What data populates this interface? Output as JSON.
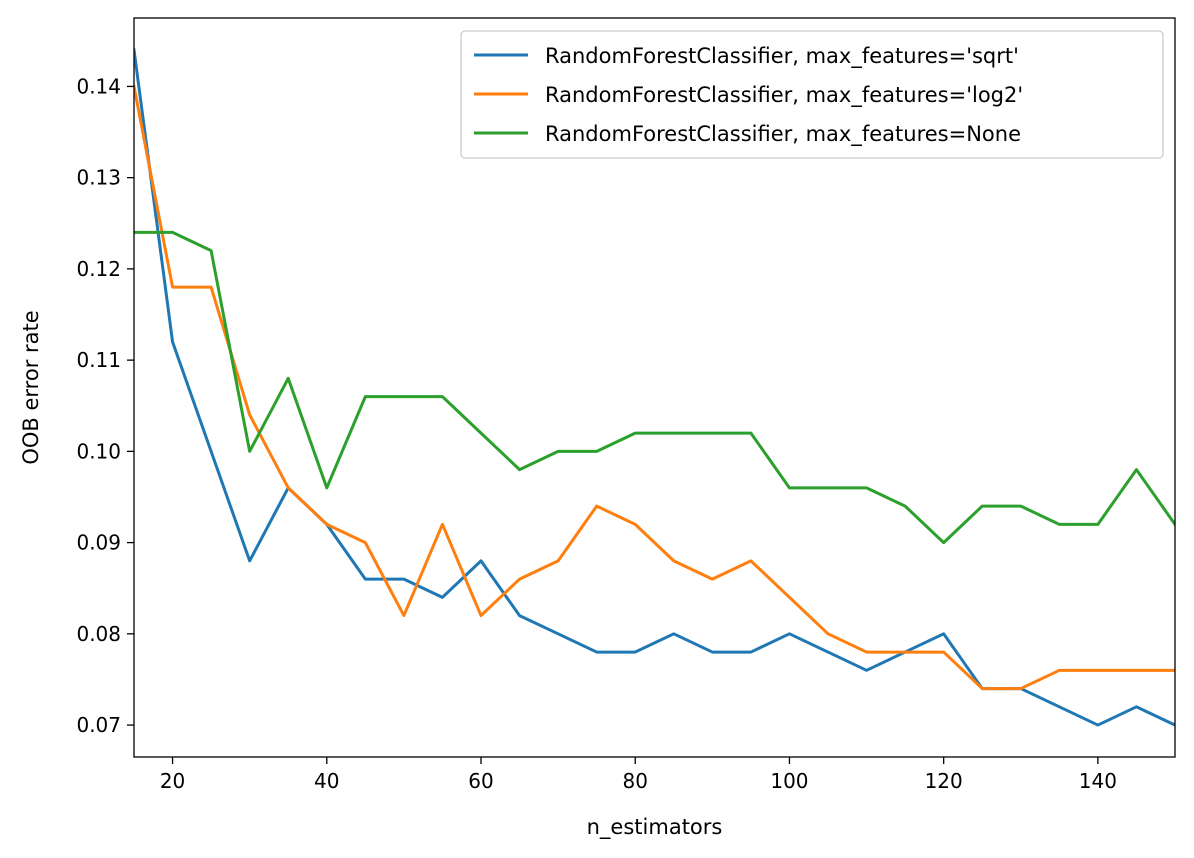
{
  "chart_data": {
    "type": "line",
    "xlabel": "n_estimators",
    "ylabel": "OOB error rate",
    "xlim": [
      15,
      150
    ],
    "ylim": [
      0.0665,
      0.1475
    ],
    "xticks": [
      20,
      40,
      60,
      80,
      100,
      120,
      140
    ],
    "yticks": [
      0.07,
      0.08,
      0.09,
      0.1,
      0.11,
      0.12,
      0.13,
      0.14
    ],
    "xtick_labels": [
      "20",
      "40",
      "60",
      "80",
      "100",
      "120",
      "140"
    ],
    "ytick_labels": [
      "0.07",
      "0.08",
      "0.09",
      "0.10",
      "0.11",
      "0.12",
      "0.13",
      "0.14"
    ],
    "grid": false,
    "legend_position": "top-right",
    "x": [
      15,
      20,
      25,
      30,
      35,
      40,
      45,
      50,
      55,
      60,
      65,
      70,
      75,
      80,
      85,
      90,
      95,
      100,
      105,
      110,
      115,
      120,
      125,
      130,
      135,
      140,
      145,
      150
    ],
    "series": [
      {
        "name": "RandomForestClassifier, max_features='sqrt'",
        "color": "#1f77b4",
        "values": [
          0.144,
          0.112,
          0.1,
          0.088,
          0.096,
          0.092,
          0.086,
          0.086,
          0.084,
          0.088,
          0.082,
          0.08,
          0.078,
          0.078,
          0.08,
          0.078,
          0.078,
          0.08,
          0.078,
          0.076,
          0.078,
          0.08,
          0.074,
          0.074,
          0.072,
          0.07,
          0.072,
          0.07
        ]
      },
      {
        "name": "RandomForestClassifier, max_features='log2'",
        "color": "#ff7f0e",
        "values": [
          0.14,
          0.118,
          0.118,
          0.104,
          0.096,
          0.092,
          0.09,
          0.082,
          0.092,
          0.082,
          0.086,
          0.088,
          0.094,
          0.092,
          0.088,
          0.086,
          0.088,
          0.084,
          0.08,
          0.078,
          0.078,
          0.078,
          0.074,
          0.074,
          0.076,
          0.076,
          0.076,
          0.076
        ]
      },
      {
        "name": "RandomForestClassifier, max_features=None",
        "color": "#2ca02c",
        "values": [
          0.124,
          0.124,
          0.122,
          0.1,
          0.108,
          0.096,
          0.106,
          0.106,
          0.106,
          0.102,
          0.098,
          0.1,
          0.1,
          0.102,
          0.102,
          0.102,
          0.102,
          0.096,
          0.096,
          0.096,
          0.094,
          0.09,
          0.094,
          0.094,
          0.092,
          0.092,
          0.098,
          0.092
        ]
      }
    ]
  }
}
